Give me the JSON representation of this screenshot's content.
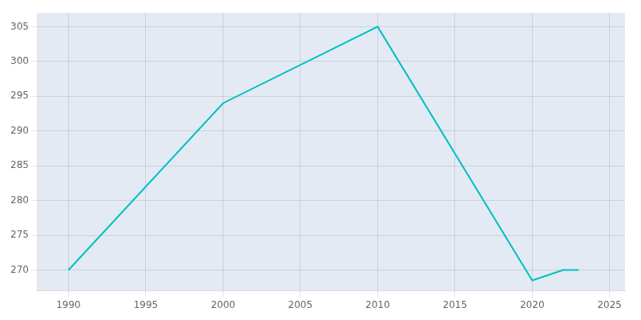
{
  "chart_data": {
    "type": "line",
    "x": [
      1990,
      2000,
      2010,
      2020,
      2022,
      2023
    ],
    "values": [
      270,
      294,
      305,
      268.5,
      270,
      270
    ],
    "color": "#00C0C0",
    "xlim": [
      1988,
      2026
    ],
    "xticks": [
      1990,
      1995,
      2000,
      2005,
      2010,
      2015,
      2020,
      2025
    ],
    "ylim": [
      267,
      307
    ],
    "yticks": [
      270,
      275,
      280,
      285,
      290,
      295,
      300,
      305
    ],
    "grid": true
  }
}
